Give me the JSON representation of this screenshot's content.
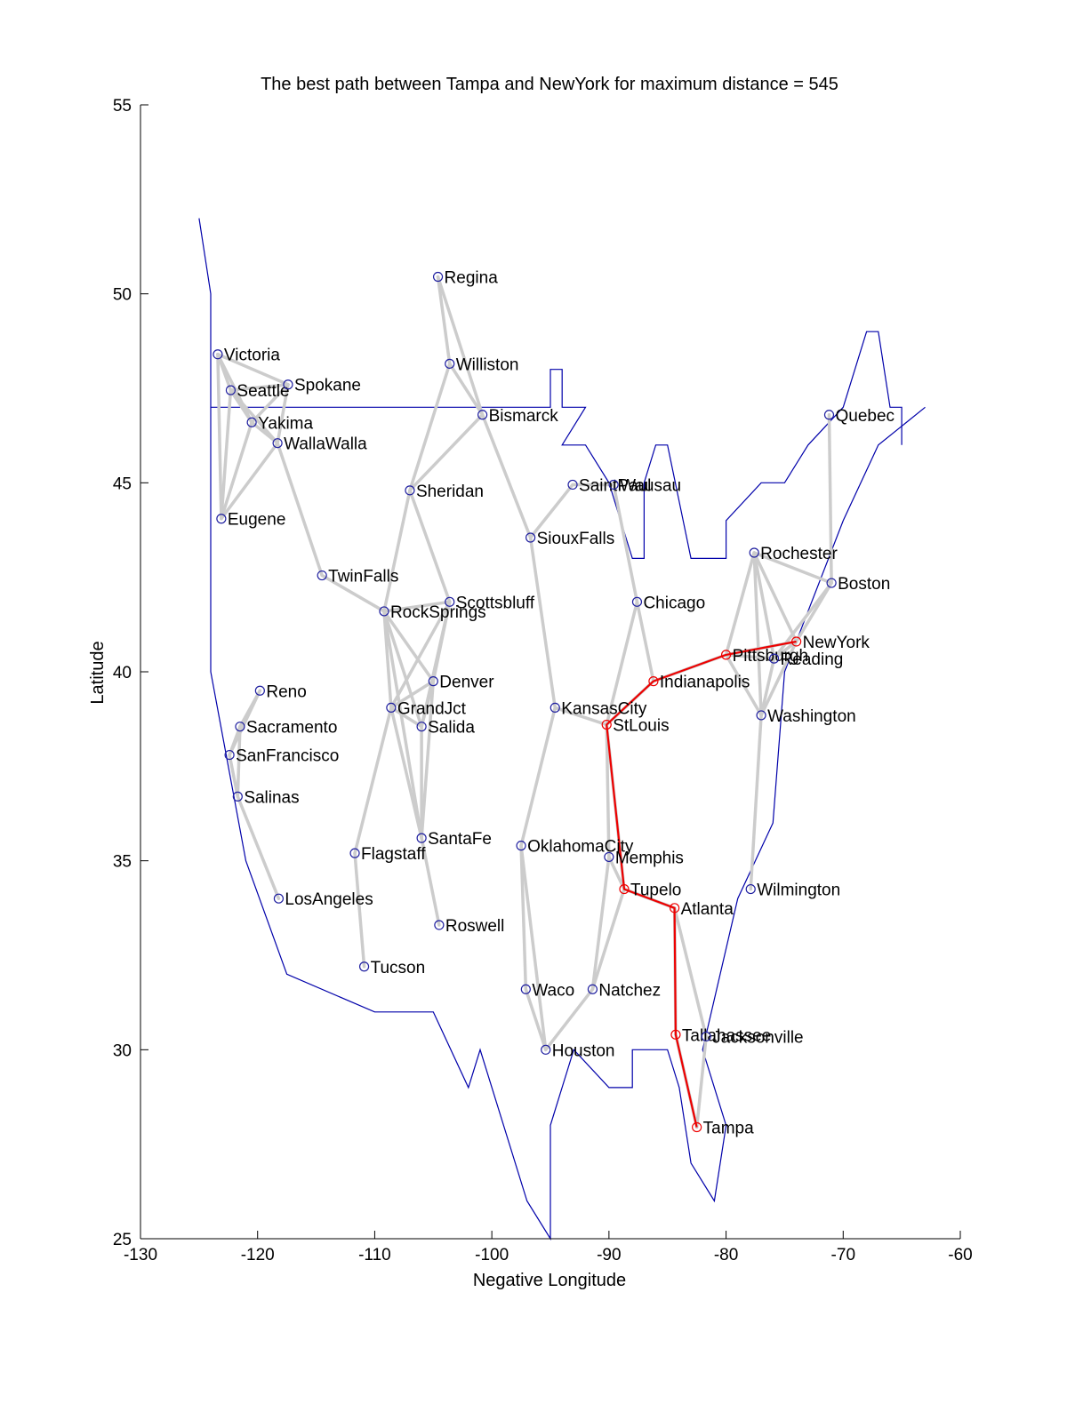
{
  "chart_data": {
    "type": "scatter",
    "title": "The best path between Tampa and NewYork for maximum distance = 545",
    "xlabel": "Negative Longitude",
    "ylabel": "Latitude",
    "xlim": [
      -130,
      -60
    ],
    "ylim": [
      25,
      55
    ],
    "xticks": [
      -130,
      -120,
      -110,
      -100,
      -90,
      -80,
      -70,
      -60
    ],
    "yticks": [
      25,
      30,
      35,
      40,
      45,
      50,
      55
    ],
    "grid": false,
    "colors": {
      "outline": "#0000aa",
      "edges": "#cccccc",
      "path": "#ee0000",
      "markers": "#2020a0"
    },
    "cities": [
      {
        "name": "Regina",
        "x": -104.6,
        "y": 50.45
      },
      {
        "name": "Williston",
        "x": -103.6,
        "y": 48.15
      },
      {
        "name": "Bismarck",
        "x": -100.8,
        "y": 46.8
      },
      {
        "name": "Victoria",
        "x": -123.4,
        "y": 48.4
      },
      {
        "name": "Seattle",
        "x": -122.3,
        "y": 47.45
      },
      {
        "name": "Spokane",
        "x": -117.4,
        "y": 47.6
      },
      {
        "name": "Yakima",
        "x": -120.5,
        "y": 46.6
      },
      {
        "name": "WallaWalla",
        "x": -118.3,
        "y": 46.05
      },
      {
        "name": "Eugene",
        "x": -123.1,
        "y": 44.05
      },
      {
        "name": "Sheridan",
        "x": -107.0,
        "y": 44.8
      },
      {
        "name": "SaintPaul",
        "x": -93.1,
        "y": 44.95
      },
      {
        "name": "Wausau",
        "x": -89.6,
        "y": 44.95
      },
      {
        "name": "SiouxFalls",
        "x": -96.7,
        "y": 43.55
      },
      {
        "name": "Quebec",
        "x": -71.2,
        "y": 46.8
      },
      {
        "name": "Rochester",
        "x": -77.6,
        "y": 43.15
      },
      {
        "name": "Boston",
        "x": -71.0,
        "y": 42.35
      },
      {
        "name": "TwinFalls",
        "x": -114.5,
        "y": 42.55
      },
      {
        "name": "RockSprings",
        "x": -109.2,
        "y": 41.6
      },
      {
        "name": "Scottsbluff",
        "x": -103.6,
        "y": 41.85
      },
      {
        "name": "Chicago",
        "x": -87.6,
        "y": 41.85
      },
      {
        "name": "NewYork",
        "x": -74.0,
        "y": 40.8
      },
      {
        "name": "Pittsburgh",
        "x": -80.0,
        "y": 40.45
      },
      {
        "name": "Reading",
        "x": -75.9,
        "y": 40.35
      },
      {
        "name": "Indianapolis",
        "x": -86.2,
        "y": 39.75
      },
      {
        "name": "Denver",
        "x": -105.0,
        "y": 39.75
      },
      {
        "name": "Reno",
        "x": -119.8,
        "y": 39.5
      },
      {
        "name": "GrandJct",
        "x": -108.6,
        "y": 39.05
      },
      {
        "name": "KansasCity",
        "x": -94.6,
        "y": 39.05
      },
      {
        "name": "StLouis",
        "x": -90.2,
        "y": 38.6
      },
      {
        "name": "Washington",
        "x": -77.0,
        "y": 38.85
      },
      {
        "name": "Sacramento",
        "x": -121.5,
        "y": 38.55
      },
      {
        "name": "Salida",
        "x": -106.0,
        "y": 38.55
      },
      {
        "name": "SanFrancisco",
        "x": -122.4,
        "y": 37.8
      },
      {
        "name": "Salinas",
        "x": -121.7,
        "y": 36.7
      },
      {
        "name": "SantaFe",
        "x": -106.0,
        "y": 35.6
      },
      {
        "name": "OklahomaCity",
        "x": -97.5,
        "y": 35.4
      },
      {
        "name": "Memphis",
        "x": -90.0,
        "y": 35.1
      },
      {
        "name": "Flagstaff",
        "x": -111.7,
        "y": 35.2
      },
      {
        "name": "Tupelo",
        "x": -88.7,
        "y": 34.25
      },
      {
        "name": "Wilmington",
        "x": -77.9,
        "y": 34.25
      },
      {
        "name": "LosAngeles",
        "x": -118.2,
        "y": 34.0
      },
      {
        "name": "Atlanta",
        "x": -84.4,
        "y": 33.75
      },
      {
        "name": "Roswell",
        "x": -104.5,
        "y": 33.3
      },
      {
        "name": "Tucson",
        "x": -110.9,
        "y": 32.2
      },
      {
        "name": "Waco",
        "x": -97.1,
        "y": 31.6
      },
      {
        "name": "Natchez",
        "x": -91.4,
        "y": 31.6
      },
      {
        "name": "Tallahassee",
        "x": -84.3,
        "y": 30.4
      },
      {
        "name": "Jacksonville",
        "x": -81.7,
        "y": 30.35
      },
      {
        "name": "Houston",
        "x": -95.4,
        "y": 30.0
      },
      {
        "name": "Tampa",
        "x": -82.5,
        "y": 27.95
      }
    ],
    "edges": [
      [
        "Regina",
        "Williston"
      ],
      [
        "Regina",
        "Bismarck"
      ],
      [
        "Williston",
        "Bismarck"
      ],
      [
        "Williston",
        "Sheridan"
      ],
      [
        "Bismarck",
        "Sheridan"
      ],
      [
        "Bismarck",
        "SiouxFalls"
      ],
      [
        "Victoria",
        "Seattle"
      ],
      [
        "Victoria",
        "Spokane"
      ],
      [
        "Victoria",
        "Yakima"
      ],
      [
        "Victoria",
        "Eugene"
      ],
      [
        "Seattle",
        "Spokane"
      ],
      [
        "Seattle",
        "Yakima"
      ],
      [
        "Seattle",
        "WallaWalla"
      ],
      [
        "Seattle",
        "Eugene"
      ],
      [
        "Spokane",
        "Yakima"
      ],
      [
        "Spokane",
        "WallaWalla"
      ],
      [
        "Yakima",
        "WallaWalla"
      ],
      [
        "Yakima",
        "Eugene"
      ],
      [
        "WallaWalla",
        "Eugene"
      ],
      [
        "WallaWalla",
        "TwinFalls"
      ],
      [
        "TwinFalls",
        "RockSprings"
      ],
      [
        "Sheridan",
        "RockSprings"
      ],
      [
        "Sheridan",
        "Scottsbluff"
      ],
      [
        "RockSprings",
        "Scottsbluff"
      ],
      [
        "RockSprings",
        "Denver"
      ],
      [
        "RockSprings",
        "GrandJct"
      ],
      [
        "RockSprings",
        "Salida"
      ],
      [
        "RockSprings",
        "SantaFe"
      ],
      [
        "Scottsbluff",
        "Denver"
      ],
      [
        "Scottsbluff",
        "GrandJct"
      ],
      [
        "Scottsbluff",
        "Salida"
      ],
      [
        "Denver",
        "GrandJct"
      ],
      [
        "Denver",
        "Salida"
      ],
      [
        "Denver",
        "SantaFe"
      ],
      [
        "GrandJct",
        "Salida"
      ],
      [
        "GrandJct",
        "SantaFe"
      ],
      [
        "GrandJct",
        "Flagstaff"
      ],
      [
        "Salida",
        "SantaFe"
      ],
      [
        "SantaFe",
        "Roswell"
      ],
      [
        "Flagstaff",
        "Tucson"
      ],
      [
        "Reno",
        "Sacramento"
      ],
      [
        "Reno",
        "SanFrancisco"
      ],
      [
        "Sacramento",
        "SanFrancisco"
      ],
      [
        "Sacramento",
        "Salinas"
      ],
      [
        "SanFrancisco",
        "Salinas"
      ],
      [
        "Salinas",
        "LosAngeles"
      ],
      [
        "SaintPaul",
        "SiouxFalls"
      ],
      [
        "SaintPaul",
        "Wausau"
      ],
      [
        "Wausau",
        "Chicago"
      ],
      [
        "SiouxFalls",
        "KansasCity"
      ],
      [
        "KansasCity",
        "StLouis"
      ],
      [
        "KansasCity",
        "OklahomaCity"
      ],
      [
        "Chicago",
        "StLouis"
      ],
      [
        "Chicago",
        "Indianapolis"
      ],
      [
        "StLouis",
        "Indianapolis"
      ],
      [
        "StLouis",
        "Memphis"
      ],
      [
        "StLouis",
        "Tupelo"
      ],
      [
        "Memphis",
        "Natchez"
      ],
      [
        "Memphis",
        "Tupelo"
      ],
      [
        "Tupelo",
        "Natchez"
      ],
      [
        "Tupelo",
        "Atlanta"
      ],
      [
        "OklahomaCity",
        "Waco"
      ],
      [
        "OklahomaCity",
        "Houston"
      ],
      [
        "Waco",
        "Houston"
      ],
      [
        "Houston",
        "Natchez"
      ],
      [
        "Atlanta",
        "Tallahassee"
      ],
      [
        "Atlanta",
        "Jacksonville"
      ],
      [
        "Tallahassee",
        "Tampa"
      ],
      [
        "Jacksonville",
        "Tampa"
      ],
      [
        "Indianapolis",
        "Pittsburgh"
      ],
      [
        "Pittsburgh",
        "Rochester"
      ],
      [
        "Pittsburgh",
        "NewYork"
      ],
      [
        "Pittsburgh",
        "Reading"
      ],
      [
        "Pittsburgh",
        "Washington"
      ],
      [
        "Rochester",
        "NewYork"
      ],
      [
        "Rochester",
        "Reading"
      ],
      [
        "Rochester",
        "Washington"
      ],
      [
        "Rochester",
        "Boston"
      ],
      [
        "Boston",
        "NewYork"
      ],
      [
        "Boston",
        "Reading"
      ],
      [
        "Boston",
        "Quebec"
      ],
      [
        "NewYork",
        "Reading"
      ],
      [
        "NewYork",
        "Washington"
      ],
      [
        "Reading",
        "Washington"
      ],
      [
        "Washington",
        "Wilmington"
      ]
    ],
    "path": [
      "Tampa",
      "Tallahassee",
      "Atlanta",
      "Tupelo",
      "StLouis",
      "Indianapolis",
      "Pittsburgh",
      "NewYork"
    ],
    "outline": [
      [
        -125,
        52
      ],
      [
        -124,
        50
      ],
      [
        -124,
        40
      ],
      [
        -121,
        35
      ],
      [
        -117.5,
        32
      ],
      [
        -110,
        31
      ],
      [
        -105,
        31
      ],
      [
        -102,
        29
      ],
      [
        -101,
        30
      ],
      [
        -97,
        26
      ],
      [
        -95,
        25
      ],
      [
        -95,
        28
      ],
      [
        -93,
        30
      ],
      [
        -90,
        29
      ],
      [
        -88,
        29
      ],
      [
        -88,
        30
      ],
      [
        -85,
        30
      ],
      [
        -84,
        29
      ],
      [
        -83,
        27
      ],
      [
        -81,
        26
      ],
      [
        -80,
        28
      ],
      [
        -82,
        30
      ],
      [
        -79,
        34
      ],
      [
        -76,
        36
      ],
      [
        -75,
        40
      ],
      [
        -70,
        44
      ],
      [
        -67,
        46
      ],
      [
        -63,
        47
      ]
    ],
    "border": [
      [
        -124,
        47
      ],
      [
        -95,
        47
      ],
      [
        -95,
        48
      ],
      [
        -94,
        48
      ],
      [
        -94,
        47
      ],
      [
        -92,
        47
      ],
      [
        -94,
        46
      ],
      [
        -92,
        46
      ],
      [
        -90,
        45
      ],
      [
        -89,
        44
      ],
      [
        -88,
        43
      ],
      [
        -87,
        43
      ],
      [
        -87,
        45
      ],
      [
        -86,
        46
      ],
      [
        -85,
        46
      ],
      [
        -83,
        43
      ],
      [
        -80,
        43
      ],
      [
        -80,
        44
      ],
      [
        -77,
        45
      ],
      [
        -75,
        45
      ],
      [
        -73,
        46
      ],
      [
        -70,
        47
      ],
      [
        -68,
        49
      ],
      [
        -67,
        49
      ],
      [
        -66,
        47
      ],
      [
        -65,
        47
      ],
      [
        -65,
        46
      ]
    ]
  }
}
